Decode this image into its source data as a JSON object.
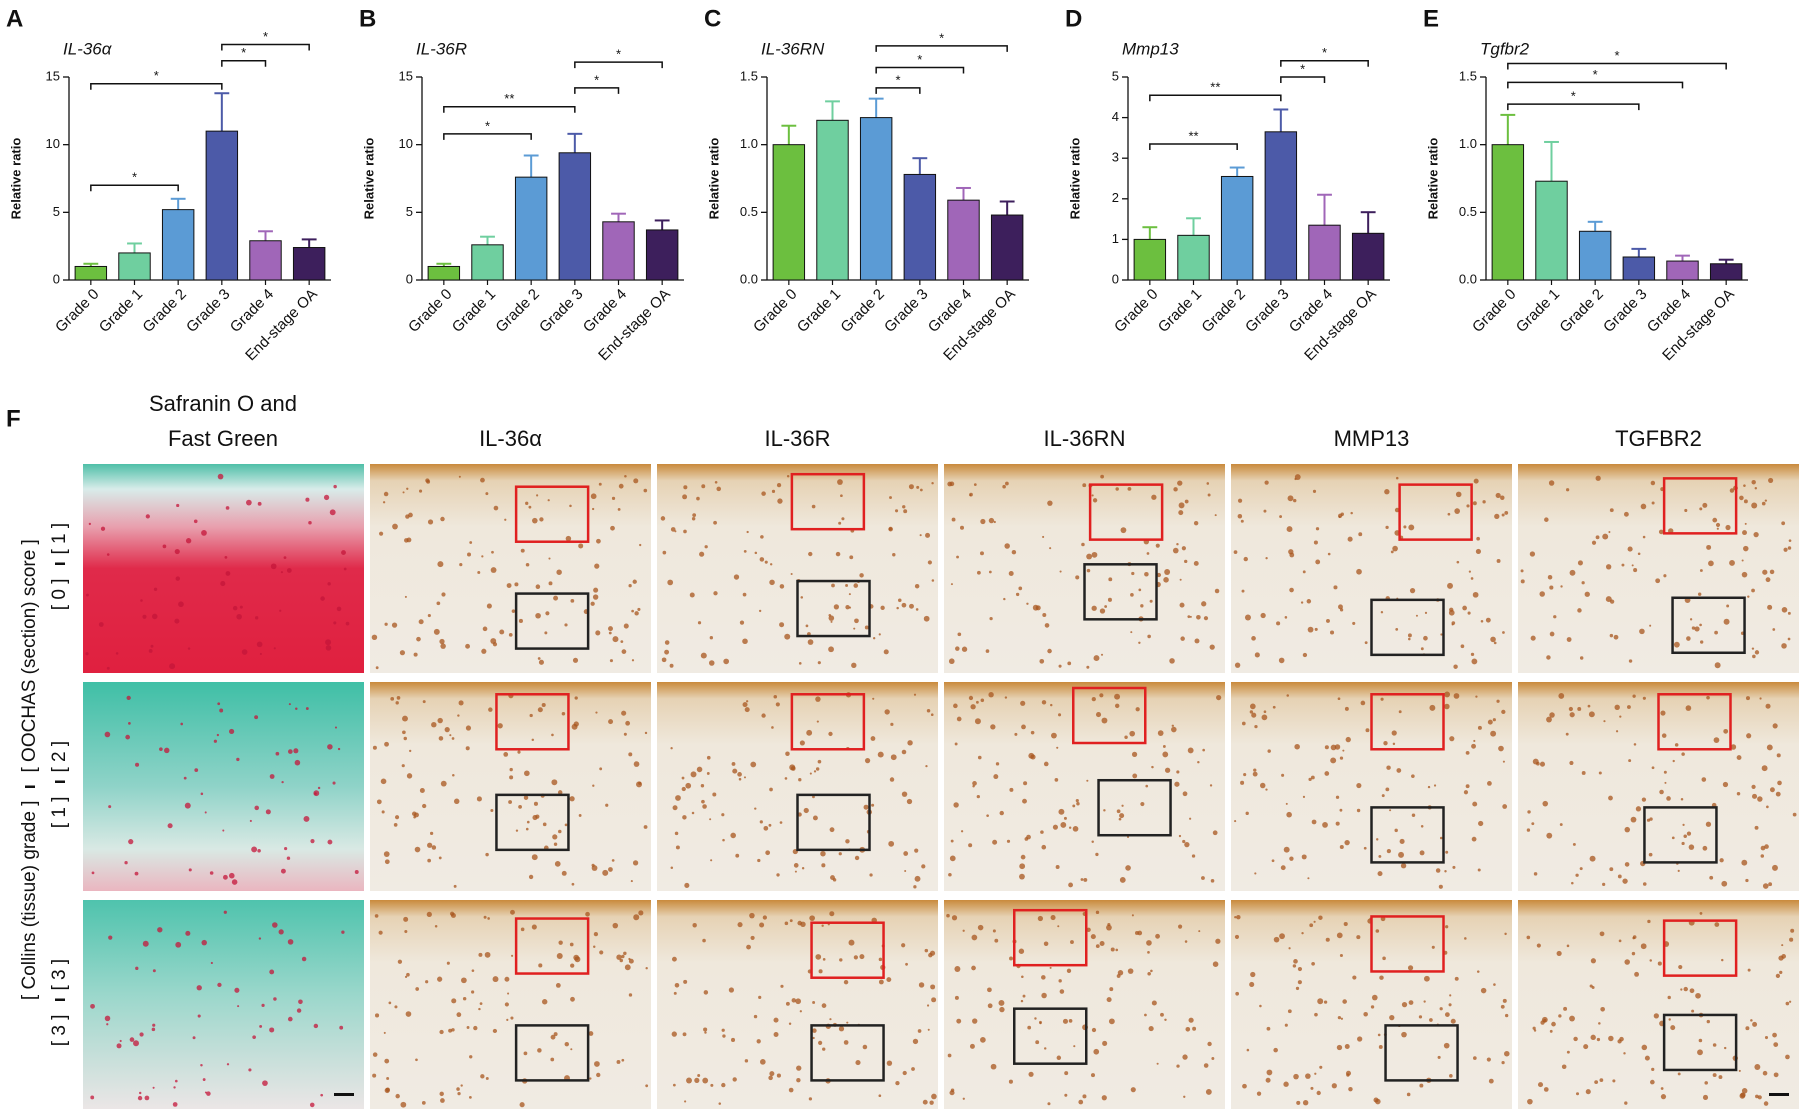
{
  "chart_data": [
    {
      "type": "bar",
      "panel": "A",
      "title": "IL-36α",
      "ylabel": "Relative ratio",
      "categories": [
        "Grade 0",
        "Grade 1",
        "Grade 2",
        "Grade 3",
        "Grade 4",
        "End-stage OA"
      ],
      "values": [
        1.0,
        2.0,
        5.2,
        11.0,
        2.9,
        2.4
      ],
      "errors": [
        0.2,
        0.7,
        0.8,
        2.8,
        0.7,
        0.6
      ],
      "colors": [
        "#6cbf3f",
        "#6fcf9f",
        "#5b9bd5",
        "#4c5aa8",
        "#a066b8",
        "#3d1f5c"
      ],
      "ylim": [
        0,
        15
      ],
      "yticks": [
        0,
        5,
        10,
        15
      ],
      "significance": [
        {
          "from": 0,
          "to": 2,
          "y": 7,
          "label": "*"
        },
        {
          "from": 0,
          "to": 3,
          "y": 14.5,
          "label": "*"
        },
        {
          "from": 3,
          "to": 4,
          "y": 16.2,
          "label": "*"
        },
        {
          "from": 3,
          "to": 5,
          "y": 17.4,
          "label": "*"
        }
      ]
    },
    {
      "type": "bar",
      "panel": "B",
      "title": "IL-36R",
      "ylabel": "Relative ratio",
      "categories": [
        "Grade 0",
        "Grade 1",
        "Grade 2",
        "Grade 3",
        "Grade 4",
        "End-stage OA"
      ],
      "values": [
        1.0,
        2.6,
        7.6,
        9.4,
        4.3,
        3.7
      ],
      "errors": [
        0.2,
        0.6,
        1.6,
        1.4,
        0.6,
        0.7
      ],
      "colors": [
        "#6cbf3f",
        "#6fcf9f",
        "#5b9bd5",
        "#4c5aa8",
        "#a066b8",
        "#3d1f5c"
      ],
      "ylim": [
        0,
        15
      ],
      "yticks": [
        0,
        5,
        10,
        15
      ],
      "significance": [
        {
          "from": 0,
          "to": 2,
          "y": 10.8,
          "label": "*"
        },
        {
          "from": 0,
          "to": 3,
          "y": 12.8,
          "label": "**"
        },
        {
          "from": 3,
          "to": 4,
          "y": 14.2,
          "label": "*"
        },
        {
          "from": 3,
          "to": 5,
          "y": 16.1,
          "label": "*"
        }
      ]
    },
    {
      "type": "bar",
      "panel": "C",
      "title": "IL-36RN",
      "ylabel": "Relative ratio",
      "categories": [
        "Grade 0",
        "Grade 1",
        "Grade 2",
        "Grade 3",
        "Grade 4",
        "End-stage OA"
      ],
      "values": [
        1.0,
        1.18,
        1.2,
        0.78,
        0.59,
        0.48
      ],
      "errors": [
        0.14,
        0.14,
        0.14,
        0.12,
        0.09,
        0.1
      ],
      "colors": [
        "#6cbf3f",
        "#6fcf9f",
        "#5b9bd5",
        "#4c5aa8",
        "#a066b8",
        "#3d1f5c"
      ],
      "ylim": [
        0,
        1.5
      ],
      "yticks": [
        {
          "value": 0,
          "label": "0.0"
        },
        0.5,
        {
          "value": 1,
          "label": "1.0"
        },
        1.5
      ],
      "significance": [
        {
          "from": 2,
          "to": 3,
          "y": 1.42,
          "label": "*"
        },
        {
          "from": 2,
          "to": 4,
          "y": 1.57,
          "label": "*"
        },
        {
          "from": 2,
          "to": 5,
          "y": 1.73,
          "label": "*"
        }
      ]
    },
    {
      "type": "bar",
      "panel": "D",
      "title": "Mmp13",
      "ylabel": "Relative ratio",
      "categories": [
        "Grade 0",
        "Grade 1",
        "Grade 2",
        "Grade 3",
        "Grade 4",
        "End-stage OA"
      ],
      "values": [
        1.0,
        1.1,
        2.55,
        3.65,
        1.35,
        1.15
      ],
      "errors": [
        0.3,
        0.42,
        0.22,
        0.55,
        0.75,
        0.52
      ],
      "colors": [
        "#6cbf3f",
        "#6fcf9f",
        "#5b9bd5",
        "#4c5aa8",
        "#a066b8",
        "#3d1f5c"
      ],
      "ylim": [
        0,
        5
      ],
      "yticks": [
        0,
        1,
        2,
        3,
        4,
        5
      ],
      "significance": [
        {
          "from": 0,
          "to": 2,
          "y": 3.35,
          "label": "**"
        },
        {
          "from": 0,
          "to": 3,
          "y": 4.55,
          "label": "**"
        },
        {
          "from": 3,
          "to": 4,
          "y": 5.0,
          "label": "*"
        },
        {
          "from": 3,
          "to": 5,
          "y": 5.4,
          "label": "*"
        }
      ]
    },
    {
      "type": "bar",
      "panel": "E",
      "title": "Tgfbr2",
      "ylabel": "Relative ratio",
      "categories": [
        "Grade 0",
        "Grade 1",
        "Grade 2",
        "Grade 3",
        "Grade 4",
        "End-stage OA"
      ],
      "values": [
        1.0,
        0.73,
        0.36,
        0.17,
        0.14,
        0.12
      ],
      "errors": [
        0.22,
        0.29,
        0.07,
        0.06,
        0.04,
        0.03
      ],
      "colors": [
        "#6cbf3f",
        "#6fcf9f",
        "#5b9bd5",
        "#4c5aa8",
        "#a066b8",
        "#3d1f5c"
      ],
      "ylim": [
        0,
        1.5
      ],
      "yticks": [
        {
          "value": 0,
          "label": "0.0"
        },
        0.5,
        {
          "value": 1,
          "label": "1.0"
        },
        1.5
      ],
      "significance": [
        {
          "from": 0,
          "to": 3,
          "y": 1.3,
          "label": "*"
        },
        {
          "from": 0,
          "to": 4,
          "y": 1.46,
          "label": "*"
        },
        {
          "from": 0,
          "to": 5,
          "y": 1.6,
          "label": "*"
        }
      ]
    }
  ],
  "histology": {
    "panel": "F",
    "stain_header": [
      "Safranin O and",
      "Fast Green"
    ],
    "ihc_columns": [
      "IL-36α",
      "IL-36R",
      "IL-36RN",
      "MMP13",
      "TGFBR2"
    ],
    "grade_axis": "[ Collins (tissue) grade ]",
    "score_axis": "[ OOCHAS (section) score ]",
    "rows": [
      {
        "grade": "[ 0 ]",
        "score": "[ 1 ]"
      },
      {
        "grade": "[ 1 ]",
        "score": "[ 2 ]"
      },
      {
        "grade": "[ 3 ]",
        "score": "[ 3 ]"
      }
    ]
  }
}
